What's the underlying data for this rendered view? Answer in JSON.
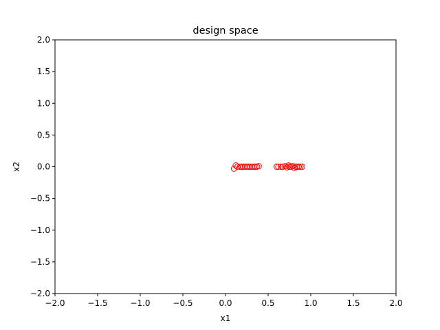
{
  "chart_data": {
    "type": "scatter",
    "title": "design space",
    "xlabel": "x1",
    "ylabel": "x2",
    "xlim": [
      -2.0,
      2.0
    ],
    "ylim": [
      -2.0,
      2.0
    ],
    "xticks": [
      "−2.0",
      "−1.5",
      "−1.0",
      "−0.5",
      "0.0",
      "0.5",
      "1.0",
      "1.5",
      "2.0"
    ],
    "yticks": [
      "−2.0",
      "−1.5",
      "−1.0",
      "−0.5",
      "0.0",
      "0.5",
      "1.0",
      "1.5",
      "2.0"
    ],
    "grid": false,
    "marker": "open-circle",
    "marker_color": "#ff0000",
    "series": [
      {
        "x": [
          0.1,
          0.12,
          0.14,
          0.17,
          0.19,
          0.21,
          0.23,
          0.25,
          0.27,
          0.29,
          0.31,
          0.33,
          0.35,
          0.37,
          0.39,
          0.6,
          0.62,
          0.65,
          0.67,
          0.7,
          0.72,
          0.74,
          0.75,
          0.77,
          0.79,
          0.81,
          0.82,
          0.84,
          0.86,
          0.88,
          0.9
        ],
        "y": [
          -0.03,
          0.02,
          0.0,
          0.0,
          0.0,
          0.0,
          0.0,
          0.0,
          0.0,
          0.0,
          0.0,
          0.0,
          0.0,
          0.0,
          0.01,
          0.0,
          0.0,
          0.0,
          0.0,
          0.01,
          -0.01,
          0.02,
          0.0,
          0.0,
          0.01,
          -0.02,
          0.0,
          0.0,
          0.0,
          0.0,
          0.0
        ]
      }
    ]
  }
}
